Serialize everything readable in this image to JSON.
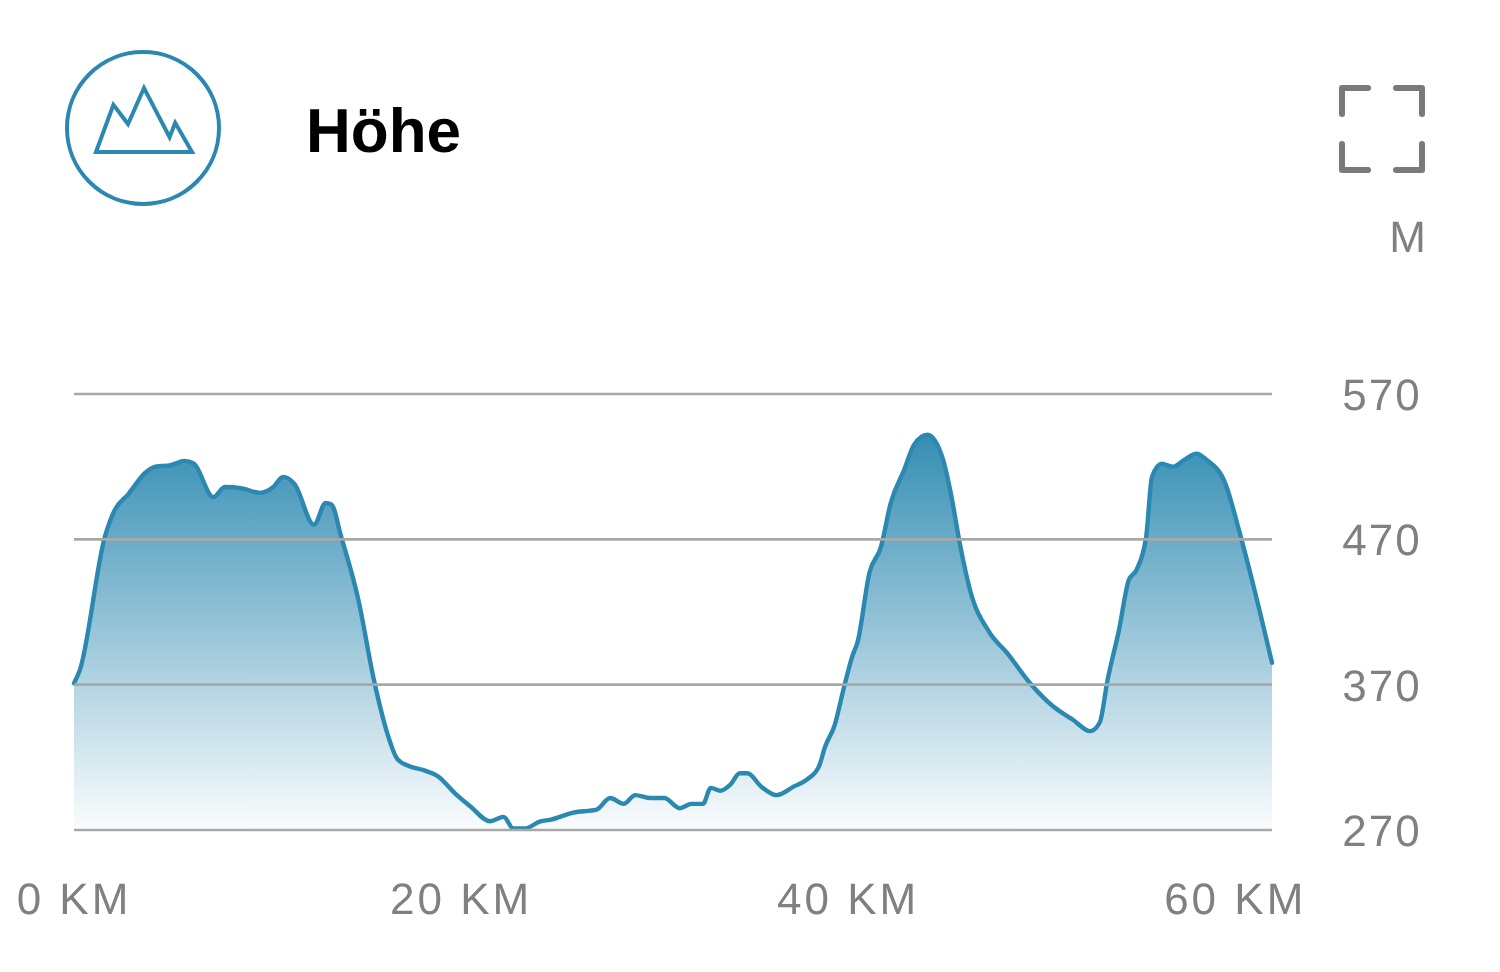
{
  "chart_data": {
    "type": "area",
    "title": "Höhe",
    "ylabel": "M",
    "x": [
      0,
      0.3,
      1.6,
      2.1,
      2.8,
      3.7,
      4.2,
      5.0,
      5.7,
      6.2,
      7.2,
      7.8,
      8.7,
      9.6,
      10.3,
      10.8,
      11.4,
      12.4,
      13.0,
      13.3,
      13.8,
      14.7,
      15.5,
      16.2,
      16.7,
      17.3,
      18.1,
      18.8,
      19.7,
      20.5,
      21.5,
      22.2,
      22.7,
      23.3,
      24.1,
      24.6,
      25.8,
      27.0,
      27.7,
      28.4,
      29.0,
      29.8,
      30.5,
      31.3,
      31.9,
      32.5,
      32.9,
      33.4,
      33.9,
      34.4,
      34.8,
      35.5,
      36.3,
      37.2,
      37.9,
      38.5,
      38.8,
      39.3,
      39.8,
      40.2,
      40.5,
      41.1,
      41.7,
      42.2,
      42.9,
      43.4,
      44.1,
      44.9,
      45.3,
      45.8,
      46.3,
      47.3,
      48.2,
      49.4,
      50.6,
      51.6,
      52.5,
      53.0,
      53.4,
      54.0,
      54.5,
      54.9,
      55.4,
      55.7,
      56.2,
      56.8,
      57.4,
      58.0,
      58.5,
      59.5,
      60.2,
      61.0,
      61.9
    ],
    "series": [
      {
        "color": "#2b88b0",
        "values": [
          371,
          380,
          472,
          490,
          501,
          516,
          520,
          521,
          524,
          522,
          499,
          506,
          505,
          502,
          506,
          513,
          508,
          480,
          495,
          494,
          472,
          428,
          373,
          336,
          319,
          314,
          311,
          307,
          295,
          286,
          276,
          279,
          271,
          271,
          276,
          277,
          282,
          284,
          292,
          288,
          294,
          292,
          292,
          285,
          288,
          288,
          299,
          297,
          301,
          309,
          309,
          300,
          294,
          300,
          305,
          314,
          327,
          342,
          369,
          389,
          400,
          447,
          465,
          495,
          518,
          535,
          542,
          525,
          502,
          465,
          435,
          406,
          392,
          371,
          355,
          346,
          338,
          344,
          373,
          408,
          442,
          449,
          472,
          513,
          522,
          520,
          525,
          529,
          525,
          508,
          476,
          435,
          385
        ]
      }
    ],
    "xlim": [
      0,
      61.9
    ],
    "xticks": [
      {
        "value": 0,
        "label": "0 KM"
      },
      {
        "value": 20,
        "label": "20 KM"
      },
      {
        "value": 40,
        "label": "40 KM"
      },
      {
        "value": 60,
        "label": "60 KM"
      }
    ],
    "ylim": [
      270,
      570
    ],
    "yticks": [
      270,
      370,
      470,
      570
    ],
    "grid": "y"
  }
}
